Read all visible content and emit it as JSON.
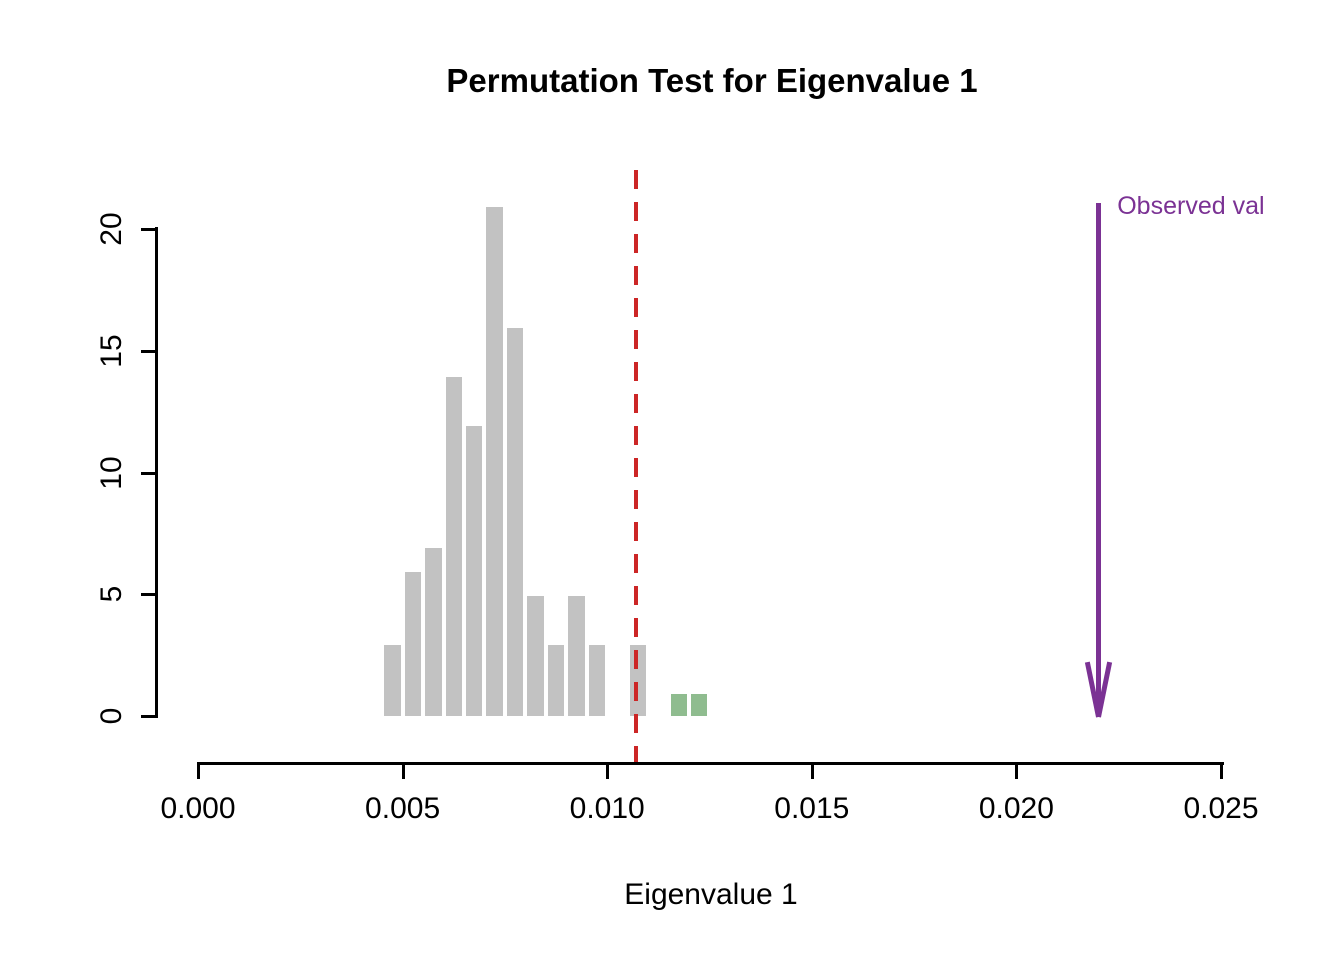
{
  "chart_data": {
    "type": "bar",
    "chart_kind": "histogram",
    "title": "Permutation Test for Eigenvalue 1",
    "xlabel": "Eigenvalue 1",
    "ylabel": "",
    "xlim": [
      0,
      0.025
    ],
    "ylim": [
      0,
      21
    ],
    "grid": false,
    "legend_position": "none",
    "x_ticks": [
      "0.000",
      "0.005",
      "0.010",
      "0.015",
      "0.020",
      "0.025"
    ],
    "x_tick_values": [
      0,
      0.005,
      0.01,
      0.015,
      0.02,
      0.025
    ],
    "y_ticks": [
      "0",
      "5",
      "10",
      "15",
      "20"
    ],
    "y_tick_values": [
      0,
      5,
      10,
      15,
      20
    ],
    "bin_width": 0.0005,
    "bins": [
      {
        "x0": 0.0045,
        "count": 3,
        "group": "null"
      },
      {
        "x0": 0.005,
        "count": 6,
        "group": "null"
      },
      {
        "x0": 0.0055,
        "count": 7,
        "group": "null"
      },
      {
        "x0": 0.006,
        "count": 14,
        "group": "null"
      },
      {
        "x0": 0.0065,
        "count": 12,
        "group": "null"
      },
      {
        "x0": 0.007,
        "count": 21,
        "group": "null"
      },
      {
        "x0": 0.0075,
        "count": 16,
        "group": "null"
      },
      {
        "x0": 0.008,
        "count": 5,
        "group": "null"
      },
      {
        "x0": 0.0085,
        "count": 3,
        "group": "null"
      },
      {
        "x0": 0.009,
        "count": 5,
        "group": "null"
      },
      {
        "x0": 0.0095,
        "count": 3,
        "group": "null"
      },
      {
        "x0": 0.01,
        "count": 0,
        "group": "null"
      },
      {
        "x0": 0.0105,
        "count": 3,
        "group": "null"
      },
      {
        "x0": 0.011,
        "count": 0,
        "group": "null"
      },
      {
        "x0": 0.0115,
        "count": 1,
        "group": "extreme"
      },
      {
        "x0": 0.012,
        "count": 1,
        "group": "extreme"
      }
    ],
    "threshold_line": {
      "x": 0.0107,
      "style": "dashed"
    },
    "observed_arrow": {
      "x": 0.022,
      "label": "Observed value"
    },
    "colors": {
      "null_bar": "#C2C2C2",
      "extreme_bar": "#8FBC8F",
      "threshold_line": "#CC2626",
      "observed": "#7B3294",
      "axis": "#000000"
    }
  }
}
